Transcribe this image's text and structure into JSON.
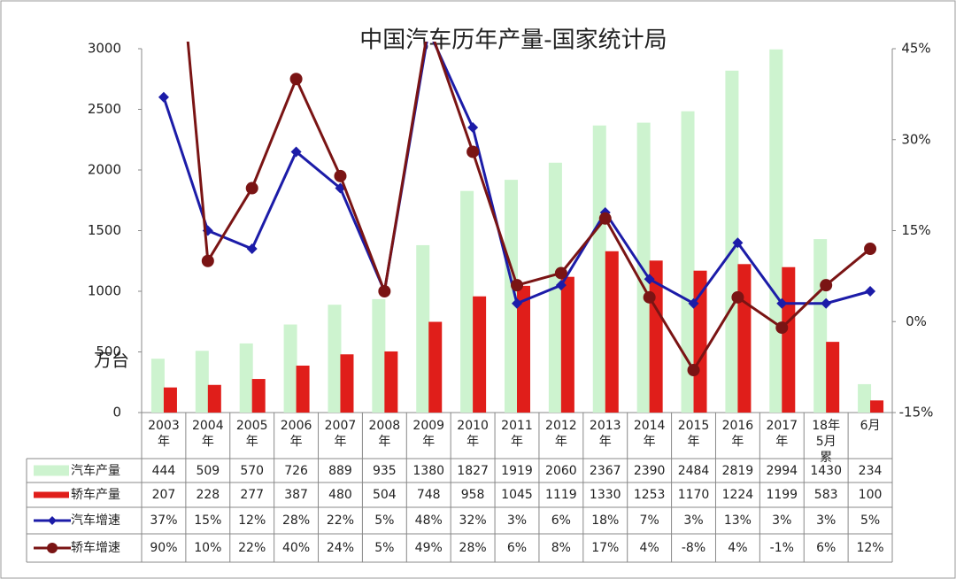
{
  "chart_data": {
    "type": "bar-line",
    "title": "中国汽车历年产量-国家统计局",
    "y_label": "万台",
    "categories": [
      "2003年",
      "2004年",
      "2005年",
      "2006年",
      "2007年",
      "2008年",
      "2009年",
      "2010年",
      "2011年",
      "2012年",
      "2013年",
      "2014年",
      "2015年",
      "2016年",
      "2017年",
      "18年5月累",
      "6月"
    ],
    "ylim": [
      0,
      3000
    ],
    "yticks": [
      0,
      500,
      1000,
      1500,
      2000,
      2500,
      3000
    ],
    "y2lim": [
      -15,
      45
    ],
    "y2ticks": [
      {
        "value": -15,
        "label": "-15%"
      },
      {
        "value": 0,
        "label": "0%"
      },
      {
        "value": 15,
        "label": "15%"
      },
      {
        "value": 30,
        "label": "30%"
      },
      {
        "value": 45,
        "label": "45%"
      }
    ],
    "series": [
      {
        "name": "汽车产量",
        "type": "bar",
        "color": "#cdf3cf",
        "values": [
          444,
          509,
          570,
          726,
          889,
          935,
          1380,
          1827,
          1919,
          2060,
          2367,
          2390,
          2484,
          2819,
          2994,
          1430,
          234
        ]
      },
      {
        "name": "轿车产量",
        "type": "bar",
        "color": "#e01e1a",
        "values": [
          207,
          228,
          277,
          387,
          480,
          504,
          748,
          958,
          1045,
          1119,
          1330,
          1253,
          1170,
          1224,
          1199,
          583,
          100
        ]
      },
      {
        "name": "汽车增速",
        "type": "line",
        "axis": "y2",
        "color": "#1c1ca8",
        "marker": "diamond",
        "values": [
          37,
          15,
          12,
          28,
          22,
          5,
          48,
          32,
          3,
          6,
          18,
          7,
          3,
          13,
          3,
          3,
          5
        ],
        "value_labels": [
          "37%",
          "15%",
          "12%",
          "28%",
          "22%",
          "5%",
          "48%",
          "32%",
          "3%",
          "6%",
          "18%",
          "7%",
          "3%",
          "13%",
          "3%",
          "3%",
          "5%"
        ]
      },
      {
        "name": "轿车增速",
        "type": "line",
        "axis": "y2",
        "color": "#7a1414",
        "marker": "circle",
        "values": [
          90,
          10,
          22,
          40,
          24,
          5,
          49,
          28,
          6,
          8,
          17,
          4,
          -8,
          4,
          -1,
          6,
          12
        ],
        "value_labels": [
          "90%",
          "10%",
          "22%",
          "40%",
          "24%",
          "5%",
          "49%",
          "28%",
          "6%",
          "8%",
          "17%",
          "4%",
          "-8%",
          "4%",
          "-1%",
          "6%",
          "12%"
        ]
      }
    ]
  }
}
